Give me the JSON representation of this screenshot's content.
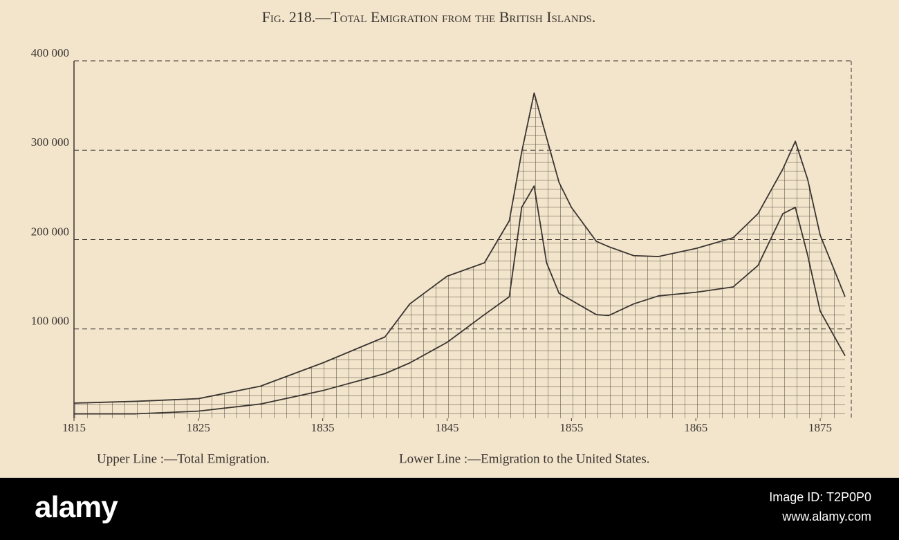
{
  "chart_data": {
    "type": "line",
    "title": "Fig. 218.—Total Emigration from the British Islands.",
    "x": [
      1815,
      1820,
      1825,
      1830,
      1835,
      1840,
      1842,
      1845,
      1848,
      1850,
      1851,
      1852,
      1853,
      1854,
      1855,
      1857,
      1858,
      1860,
      1862,
      1865,
      1868,
      1870,
      1872,
      1873,
      1874,
      1875,
      1877
    ],
    "series": [
      {
        "name": "Upper Line :—Total Emigration.",
        "color": "#3a3430",
        "values": [
          17000,
          19000,
          22000,
          36000,
          62000,
          91000,
          128000,
          159000,
          174000,
          221000,
          298000,
          364000,
          314000,
          264000,
          236000,
          198000,
          192000,
          182000,
          181000,
          190000,
          202000,
          229000,
          279000,
          310000,
          267000,
          205000,
          136000
        ]
      },
      {
        "name": "Lower Line :—Emigration to the United States.",
        "color": "#3a3430",
        "values": [
          5000,
          5000,
          8000,
          16000,
          31000,
          50000,
          62000,
          85000,
          116000,
          136000,
          236000,
          260000,
          174000,
          140000,
          132000,
          116000,
          115000,
          128000,
          137000,
          141000,
          147000,
          171000,
          229000,
          236000,
          182000,
          120000,
          70000
        ]
      }
    ],
    "xlim": [
      1815,
      1877.5
    ],
    "xticks": [
      1815,
      1825,
      1835,
      1845,
      1855,
      1865,
      1875
    ],
    "ylim": [
      0,
      400000
    ],
    "yticks": [
      {
        "value": 100000,
        "label": "100 000"
      },
      {
        "value": 200000,
        "label": "200 000"
      },
      {
        "value": 300000,
        "label": "300 000"
      },
      {
        "value": 400000,
        "label": "400 000"
      }
    ],
    "grid": true
  },
  "footer": {
    "brand": "alamy",
    "image_id": "Image ID: T2P0P0",
    "url": "www.alamy.com"
  }
}
